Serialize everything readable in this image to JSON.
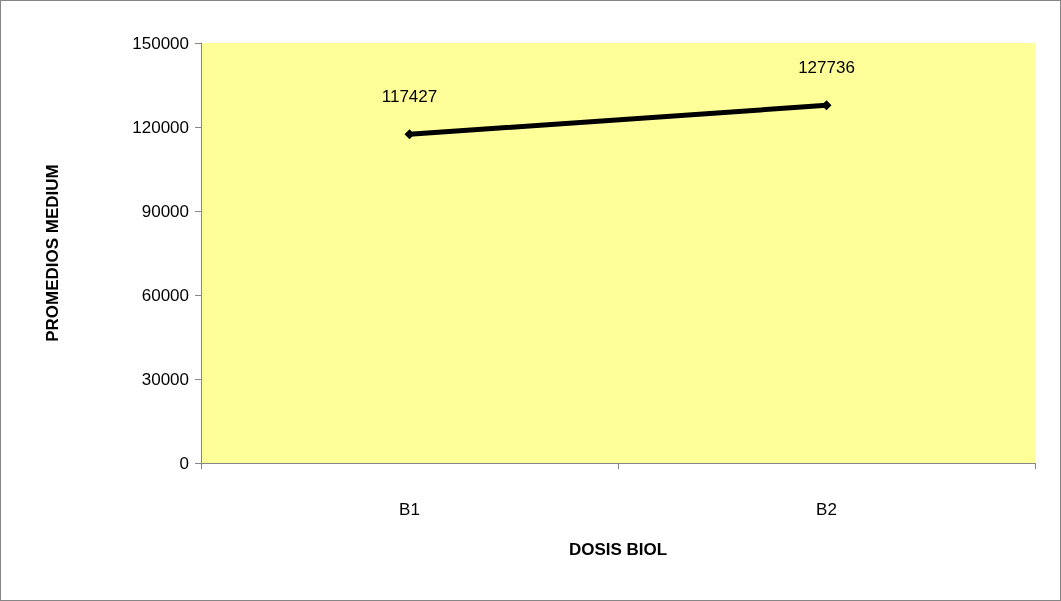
{
  "chart_data": {
    "type": "line",
    "xlabel": "DOSIS BIOL",
    "ylabel": "PROMEDIOS MEDIUM",
    "categories": [
      "B1",
      "B2"
    ],
    "series": [
      {
        "color": "#000000",
        "values": [
          117427,
          127736
        ]
      }
    ],
    "ylim": [
      0,
      150000
    ],
    "yticks": [
      0,
      30000,
      60000,
      90000,
      120000,
      150000
    ],
    "grid": false,
    "marker": "diamond",
    "line_style": "solid",
    "data_labels": true
  }
}
